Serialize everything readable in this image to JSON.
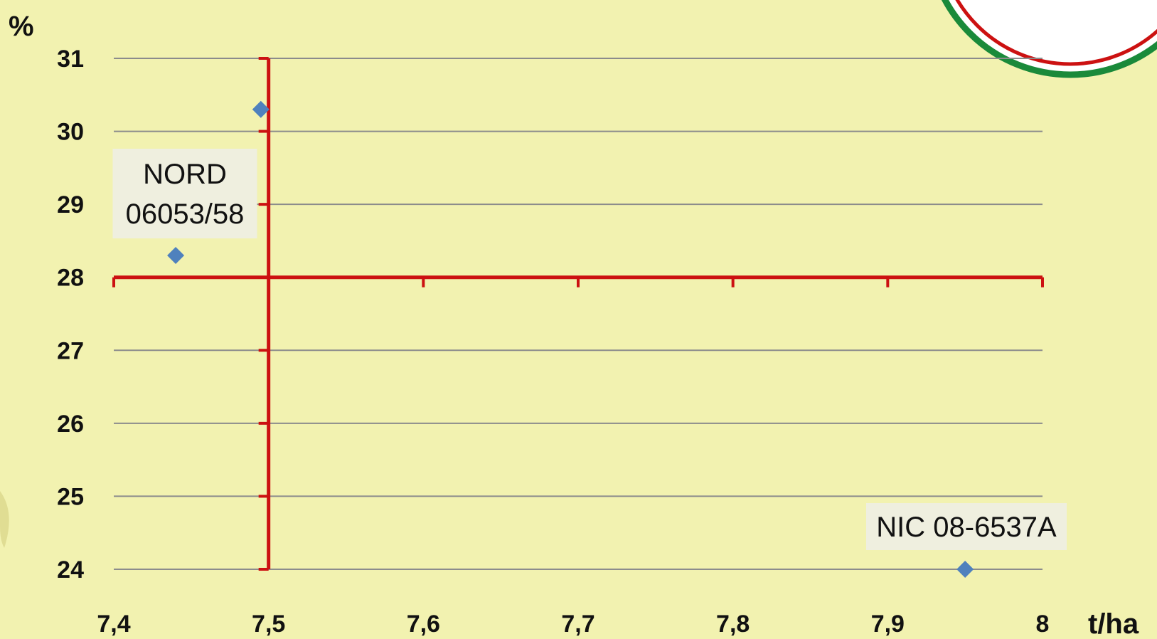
{
  "chart_data": {
    "type": "scatter",
    "title": "",
    "xlabel": "t/ha",
    "ylabel": "%",
    "xlim": [
      7.4,
      8.0
    ],
    "ylim": [
      24,
      31
    ],
    "x_ticks": [
      {
        "value": 7.4,
        "label": "7,4"
      },
      {
        "value": 7.5,
        "label": "7,5"
      },
      {
        "value": 7.6,
        "label": "7,6"
      },
      {
        "value": 7.7,
        "label": "7,7"
      },
      {
        "value": 7.8,
        "label": "7,8"
      },
      {
        "value": 7.9,
        "label": "7,9"
      },
      {
        "value": 8.0,
        "label": "8"
      }
    ],
    "y_ticks": [
      {
        "value": 24,
        "label": "24"
      },
      {
        "value": 25,
        "label": "25"
      },
      {
        "value": 26,
        "label": "26"
      },
      {
        "value": 27,
        "label": "27"
      },
      {
        "value": 28,
        "label": "28"
      },
      {
        "value": 29,
        "label": "29"
      },
      {
        "value": 30,
        "label": "30"
      },
      {
        "value": 31,
        "label": "31"
      }
    ],
    "grid": true,
    "crosshair": {
      "x": 7.5,
      "y": 28,
      "color": "#cc1111"
    },
    "marker_color": "#4f81bd",
    "gridline_color": "#8c8c8c",
    "points": [
      {
        "x": 7.44,
        "y": 28.3,
        "label": [
          "NORD",
          "06053/58"
        ]
      },
      {
        "x": 7.495,
        "y": 30.3,
        "label": null
      },
      {
        "x": 7.95,
        "y": 24.0,
        "label": [
          "NIC 08-6537A"
        ]
      }
    ]
  },
  "decor": {
    "logo_colors": [
      "#cc1111",
      "#ffffff",
      "#1a8a3a"
    ]
  }
}
